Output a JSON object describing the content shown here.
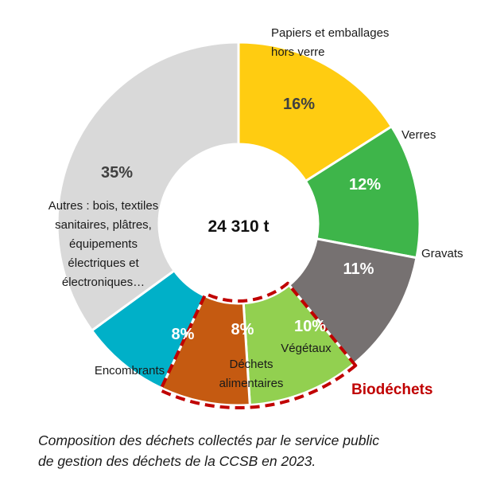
{
  "chart_data": {
    "type": "pie",
    "center_label": "24 310 t",
    "series": [
      {
        "name": "Papiers et emballages hors verre",
        "label_lines": [
          "Papiers et emballages",
          "hors verre"
        ],
        "value": 16,
        "value_label": "16%",
        "color": "#FFCC11",
        "value_color": "#404040"
      },
      {
        "name": "Verres",
        "label_lines": [
          "Verres"
        ],
        "value": 12,
        "value_label": "12%",
        "color": "#3EB54A",
        "value_color": "#ffffff"
      },
      {
        "name": "Gravats",
        "label_lines": [
          "Gravats"
        ],
        "value": 11,
        "value_label": "11%",
        "color": "#767171",
        "value_color": "#ffffff"
      },
      {
        "name": "Végétaux",
        "label_lines": [
          "Végétaux"
        ],
        "value": 10,
        "value_label": "10%",
        "color": "#92D050",
        "value_color": "#ffffff"
      },
      {
        "name": "Déchets alimentaires",
        "label_lines": [
          "Déchets",
          "alimentaires"
        ],
        "value": 8,
        "value_label": "8%",
        "color": "#C55A11",
        "value_color": "#ffffff"
      },
      {
        "name": "Encombrants",
        "label_lines": [
          "Encombrants"
        ],
        "value": 8,
        "value_label": "8%",
        "color": "#00B0C8",
        "value_color": "#ffffff"
      },
      {
        "name": "Autres : bois, textiles sanitaires, plâtres, équipements électriques et électroniques…",
        "label_lines": [
          "Autres : bois, textiles",
          "sanitaires, plâtres,",
          "équipements",
          "électriques et",
          "électroniques…"
        ],
        "value": 35,
        "value_label": "35%",
        "color": "#D9D9D9",
        "value_color": "#404040"
      }
    ],
    "group": {
      "label": "Biodéchets",
      "members": [
        "Végétaux",
        "Déchets alimentaires"
      ],
      "color": "#C00000",
      "style": "dashed"
    }
  },
  "caption": {
    "line1": "Composition des déchets collectés par le service public",
    "line2": "de gestion des déchets de la CCSB en 2023."
  }
}
